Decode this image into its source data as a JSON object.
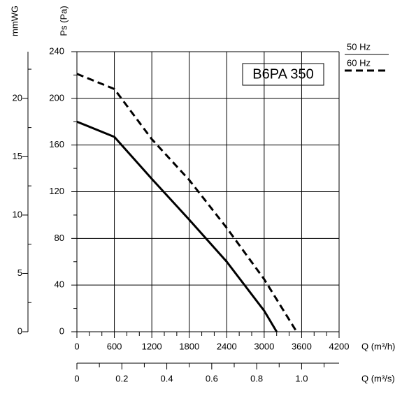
{
  "chart_data": {
    "type": "line",
    "annotation": "B6PA 350",
    "ylabel": "Ps (Pa)",
    "ylim": [
      0,
      240
    ],
    "yticks": [
      0,
      40,
      80,
      120,
      160,
      200,
      240
    ],
    "yminorticks": [
      20,
      60,
      100,
      140,
      180,
      220
    ],
    "y2label": "mmWG",
    "y2lim": [
      0,
      24
    ],
    "y2ticks": [
      0,
      5,
      10,
      15,
      20
    ],
    "y2minorticks": [
      2.5,
      7.5,
      12.5,
      17.5,
      22.5
    ],
    "xlabel": "Q (m³/h)",
    "xlim": [
      0,
      4200
    ],
    "xticks": [
      0,
      600,
      1200,
      1800,
      2400,
      3000,
      3600,
      4200
    ],
    "xminorticks": [
      200,
      400,
      800,
      1000,
      1400,
      1600,
      2000,
      2200,
      2600,
      2800,
      3200,
      3400,
      3800,
      4000
    ],
    "x2label": "Q (m³/s)",
    "x2lim": [
      0,
      1.1667
    ],
    "x2ticks": [
      0,
      0.2,
      0.4,
      0.6,
      0.8,
      {
        "value": 1,
        "label": "1.0"
      }
    ],
    "x2minorticks": [
      0.1,
      0.3,
      0.5,
      0.7,
      0.9,
      1.1
    ],
    "grid": true,
    "series": [
      {
        "name": "50 Hz",
        "color": "#000000",
        "dashed": false,
        "x": [
          0,
          600,
          1200,
          1800,
          2400,
          3000,
          3200
        ],
        "values": [
          180,
          167,
          131,
          96,
          60,
          18,
          0
        ]
      },
      {
        "name": "60 Hz",
        "color": "#000000",
        "dashed": true,
        "x": [
          0,
          600,
          1200,
          1800,
          2400,
          3000,
          3520
        ],
        "values": [
          221,
          208,
          165,
          130,
          89,
          45,
          0
        ]
      }
    ]
  }
}
